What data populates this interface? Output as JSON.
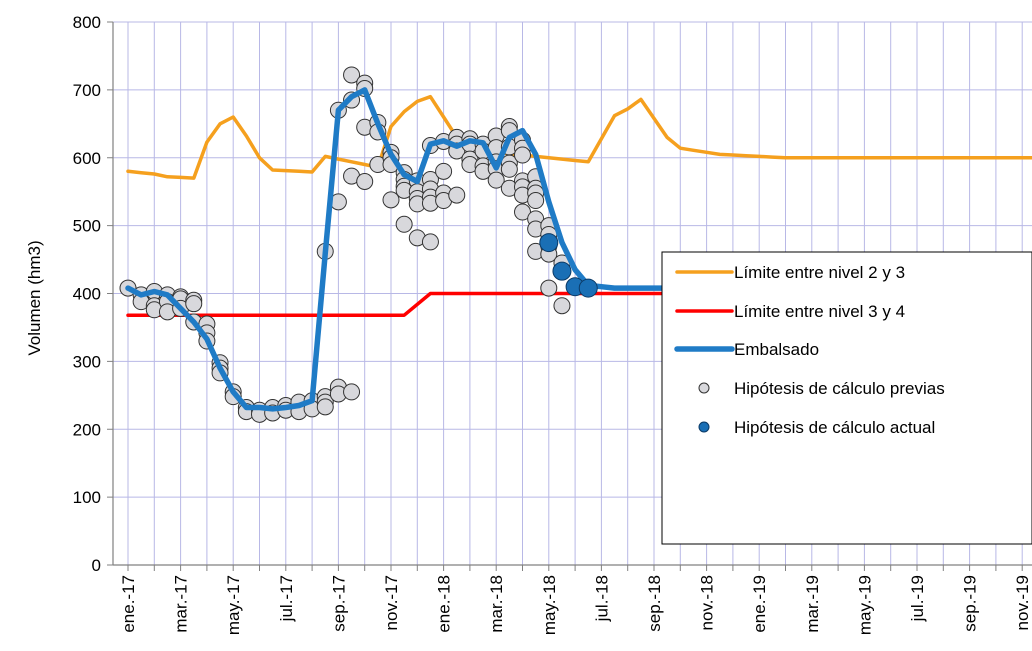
{
  "chart_data": {
    "type": "line",
    "ylabel": "Volumen (hm3)",
    "ylim": [
      0,
      800
    ],
    "yticks": [
      0,
      100,
      200,
      300,
      400,
      500,
      600,
      700,
      800
    ],
    "x_start": "ene.-17",
    "x_months": 36,
    "xtick_labels": [
      "ene.-17",
      "mar.-17",
      "may.-17",
      "jul.-17",
      "sep.-17",
      "nov.-17",
      "ene.-18",
      "mar.-18",
      "may.-18",
      "jul.-18",
      "sep.-18",
      "nov.-18",
      "ene.-19",
      "mar.-19",
      "may.-19",
      "jul.-19",
      "sep.-19",
      "nov.-19"
    ],
    "grid": true,
    "legend_position": "lower-right",
    "colors": {
      "limit23": "#f5a01e",
      "limit34": "#ff0000",
      "embalsado": "#1f7bc6",
      "previas_fill": "#d8d8dc",
      "actual_fill": "#1a6fb5"
    },
    "series": [
      {
        "name": "Límite entre nivel 2 y 3",
        "key": "limit23",
        "x": [
          0,
          0.5,
          1,
          1.5,
          2,
          2.5,
          3,
          3.5,
          4,
          4.5,
          5,
          5.5,
          6,
          6.5,
          7,
          7.5,
          8,
          8.5,
          9,
          9.5,
          10,
          10.5,
          11,
          11.5,
          12,
          12.5,
          13,
          13.5,
          14,
          14.5,
          15,
          15.5,
          16,
          16.5,
          17,
          17.5,
          18,
          18.5,
          19,
          19.5,
          20,
          20.5,
          21,
          21.5,
          22,
          22.5,
          23,
          23.5,
          24,
          24.5,
          25,
          25.5,
          26,
          26.5,
          27,
          27.5,
          28,
          28.5,
          29,
          29.5,
          30,
          30.5,
          31,
          31.5,
          32,
          32.5,
          33,
          33.5,
          34,
          34.5,
          35,
          35.5
        ],
        "y": [
          580,
          578,
          576,
          572,
          571,
          570,
          623,
          650,
          660,
          632,
          600,
          582,
          581,
          580,
          579,
          602,
          598,
          594,
          590,
          586,
          646,
          668,
          683,
          690,
          660,
          630,
          615,
          611,
          608,
          606,
          604,
          602,
          600,
          598,
          596,
          594,
          628,
          662,
          672,
          686,
          658,
          630,
          614,
          611,
          608,
          605,
          604,
          603,
          602,
          601,
          600,
          600,
          600,
          600,
          600,
          600,
          600,
          600,
          600,
          600,
          600,
          600,
          600,
          600,
          600,
          600,
          600,
          600,
          600,
          600,
          600,
          600
        ]
      },
      {
        "name": "Límite entre nivel 3 y 4",
        "key": "limit34",
        "x": [
          0,
          10.5,
          11.5,
          35.5
        ],
        "y": [
          368,
          368,
          400,
          400
        ]
      },
      {
        "name": "Embalsado",
        "key": "embalsado",
        "x": [
          0,
          0.5,
          1,
          1.5,
          2,
          2.5,
          3,
          3.5,
          4,
          4.5,
          5,
          5.5,
          6,
          6.5,
          7,
          7.5,
          8,
          8.5,
          9,
          9.5,
          10,
          10.5,
          11,
          11.5,
          12,
          12.5,
          13,
          13.5,
          14,
          14.5,
          15,
          15.5,
          16,
          16.5,
          17,
          17.5,
          18,
          18.5,
          19,
          19.5,
          20,
          20.5,
          21,
          21.5,
          22,
          22.5,
          23,
          23.5,
          24,
          24.5,
          25,
          25.5,
          26,
          26.5,
          27,
          27.5,
          28,
          28.5,
          29,
          29.5,
          30,
          30.5,
          31,
          31.5,
          32,
          32.5,
          33,
          33.5,
          34,
          34.5,
          35,
          35.5
        ],
        "y": [
          408,
          398,
          403,
          398,
          378,
          358,
          333,
          290,
          255,
          232,
          232,
          230,
          232,
          235,
          242,
          460,
          670,
          690,
          700,
          650,
          605,
          575,
          565,
          620,
          625,
          617,
          625,
          622,
          585,
          630,
          640,
          605,
          535,
          475,
          435,
          412,
          410,
          408,
          408,
          408,
          408,
          408,
          408,
          408,
          408,
          408,
          408,
          408,
          408,
          408,
          408,
          408,
          408,
          408,
          408,
          408,
          408,
          408,
          408,
          408,
          408,
          408,
          408,
          408,
          408,
          408,
          408,
          408,
          408,
          408,
          408,
          408
        ]
      },
      {
        "name": "Hipótesis de cálculo previas",
        "key": "previas",
        "points": [
          [
            0,
            408
          ],
          [
            0.5,
            398
          ],
          [
            0.5,
            388
          ],
          [
            1,
            403
          ],
          [
            1,
            382
          ],
          [
            1,
            376
          ],
          [
            1.5,
            398
          ],
          [
            1.5,
            388
          ],
          [
            1.5,
            373
          ],
          [
            2,
            395
          ],
          [
            2,
            392
          ],
          [
            2,
            378
          ],
          [
            2.5,
            390
          ],
          [
            2.5,
            385
          ],
          [
            2.5,
            358
          ],
          [
            3,
            355
          ],
          [
            3,
            342
          ],
          [
            3,
            330
          ],
          [
            3.5,
            298
          ],
          [
            3.5,
            290
          ],
          [
            3.5,
            283
          ],
          [
            4,
            255
          ],
          [
            4,
            248
          ],
          [
            4.5,
            232
          ],
          [
            4.5,
            226
          ],
          [
            5,
            228
          ],
          [
            5,
            222
          ],
          [
            5.5,
            232
          ],
          [
            5.5,
            224
          ],
          [
            6,
            235
          ],
          [
            6,
            228
          ],
          [
            6.5,
            240
          ],
          [
            6.5,
            226
          ],
          [
            7,
            242
          ],
          [
            7,
            230
          ],
          [
            7.5,
            248
          ],
          [
            7.5,
            240
          ],
          [
            7.5,
            233
          ],
          [
            7.5,
            462
          ],
          [
            8,
            670
          ],
          [
            8,
            535
          ],
          [
            8,
            262
          ],
          [
            8,
            252
          ],
          [
            8.5,
            722
          ],
          [
            8.5,
            685
          ],
          [
            8.5,
            573
          ],
          [
            8.5,
            255
          ],
          [
            9,
            710
          ],
          [
            9,
            702
          ],
          [
            9,
            645
          ],
          [
            9,
            565
          ],
          [
            9.5,
            652
          ],
          [
            9.5,
            638
          ],
          [
            9.5,
            590
          ],
          [
            10,
            608
          ],
          [
            10,
            600
          ],
          [
            10,
            590
          ],
          [
            10,
            538
          ],
          [
            10.5,
            578
          ],
          [
            10.5,
            568
          ],
          [
            10.5,
            558
          ],
          [
            10.5,
            552
          ],
          [
            10.5,
            502
          ],
          [
            11,
            566
          ],
          [
            11,
            550
          ],
          [
            11,
            540
          ],
          [
            11,
            532
          ],
          [
            11,
            482
          ],
          [
            11.5,
            618
          ],
          [
            11.5,
            568
          ],
          [
            11.5,
            554
          ],
          [
            11.5,
            542
          ],
          [
            11.5,
            533
          ],
          [
            11.5,
            476
          ],
          [
            12,
            624
          ],
          [
            12,
            580
          ],
          [
            12,
            548
          ],
          [
            12,
            537
          ],
          [
            12.5,
            630
          ],
          [
            12.5,
            620
          ],
          [
            12.5,
            610
          ],
          [
            12.5,
            545
          ],
          [
            13,
            628
          ],
          [
            13,
            620
          ],
          [
            13,
            598
          ],
          [
            13,
            590
          ],
          [
            13.5,
            620
          ],
          [
            13.5,
            610
          ],
          [
            13.5,
            588
          ],
          [
            13.5,
            580
          ],
          [
            14,
            632
          ],
          [
            14,
            615
          ],
          [
            14,
            594
          ],
          [
            14,
            584
          ],
          [
            14,
            567
          ],
          [
            14.5,
            646
          ],
          [
            14.5,
            640
          ],
          [
            14.5,
            616
          ],
          [
            14.5,
            592
          ],
          [
            14.5,
            583
          ],
          [
            14.5,
            555
          ],
          [
            15,
            626
          ],
          [
            15,
            614
          ],
          [
            15,
            604
          ],
          [
            15,
            566
          ],
          [
            15,
            557
          ],
          [
            15,
            545
          ],
          [
            15,
            520
          ],
          [
            15.5,
            572
          ],
          [
            15.5,
            555
          ],
          [
            15.5,
            548
          ],
          [
            15.5,
            537
          ],
          [
            15.5,
            510
          ],
          [
            15.5,
            495
          ],
          [
            15.5,
            462
          ],
          [
            16,
            500
          ],
          [
            16,
            487
          ],
          [
            16,
            470
          ],
          [
            16,
            458
          ],
          [
            16,
            408
          ],
          [
            16.5,
            445
          ],
          [
            16.5,
            382
          ]
        ]
      },
      {
        "name": "Hipótesis de cálculo actual",
        "key": "actual",
        "points": [
          [
            16,
            475
          ],
          [
            16.5,
            433
          ],
          [
            17,
            410
          ],
          [
            17.5,
            408
          ]
        ]
      }
    ]
  }
}
